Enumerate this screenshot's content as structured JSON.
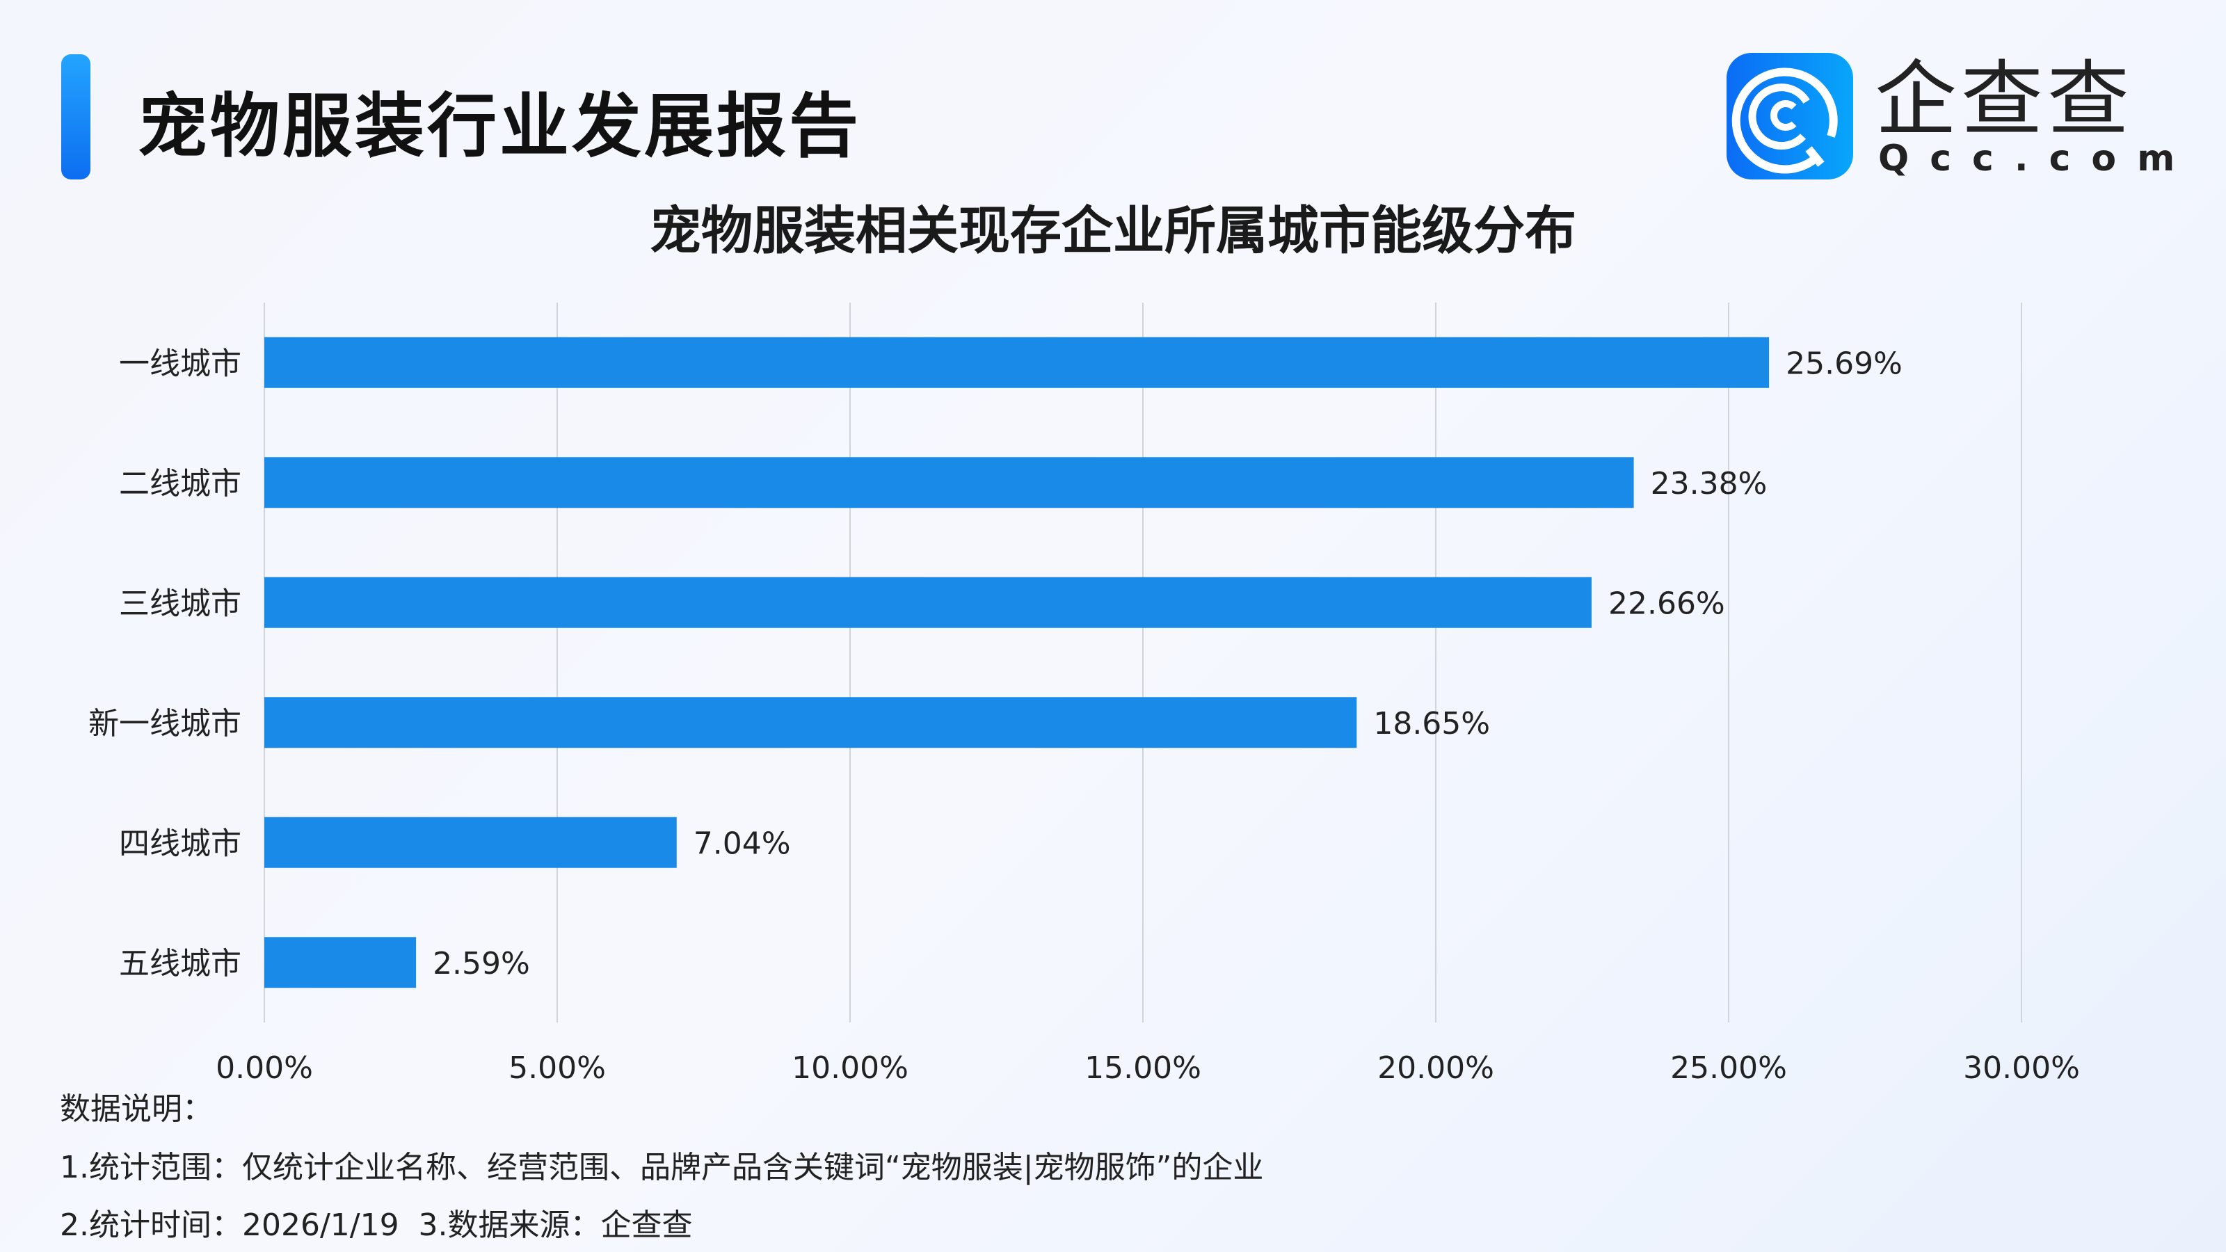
{
  "header": {
    "title": "宠物服装行业发展报告",
    "accent_color": "#1a8ae8"
  },
  "logo": {
    "text": "企查查",
    "sub": "Qcc.com"
  },
  "chart_data": {
    "type": "bar",
    "orientation": "horizontal",
    "title": "宠物服装相关现存企业所属城市能级分布",
    "categories": [
      "一线城市",
      "二线城市",
      "三线城市",
      "新一线城市",
      "四线城市",
      "五线城市"
    ],
    "values": [
      25.69,
      23.38,
      22.66,
      18.65,
      7.04,
      2.59
    ],
    "data_labels": [
      "25.69%",
      "23.38%",
      "22.66%",
      "18.65%",
      "7.04%",
      "2.59%"
    ],
    "xlim": [
      0,
      30
    ],
    "x_ticks": [
      "0.00%",
      "5.00%",
      "10.00%",
      "15.00%",
      "20.00%",
      "25.00%",
      "30.00%"
    ],
    "grid": "vertical",
    "bar_color": "#1a8ae8"
  },
  "notes": {
    "heading": "数据说明：",
    "line1": "1.统计范围：仅统计企业名称、经营范围、品牌产品含关键词“宠物服装|宠物服饰”的企业",
    "line2": "2.统计时间：2026/1/19  3.数据来源：企查查"
  }
}
